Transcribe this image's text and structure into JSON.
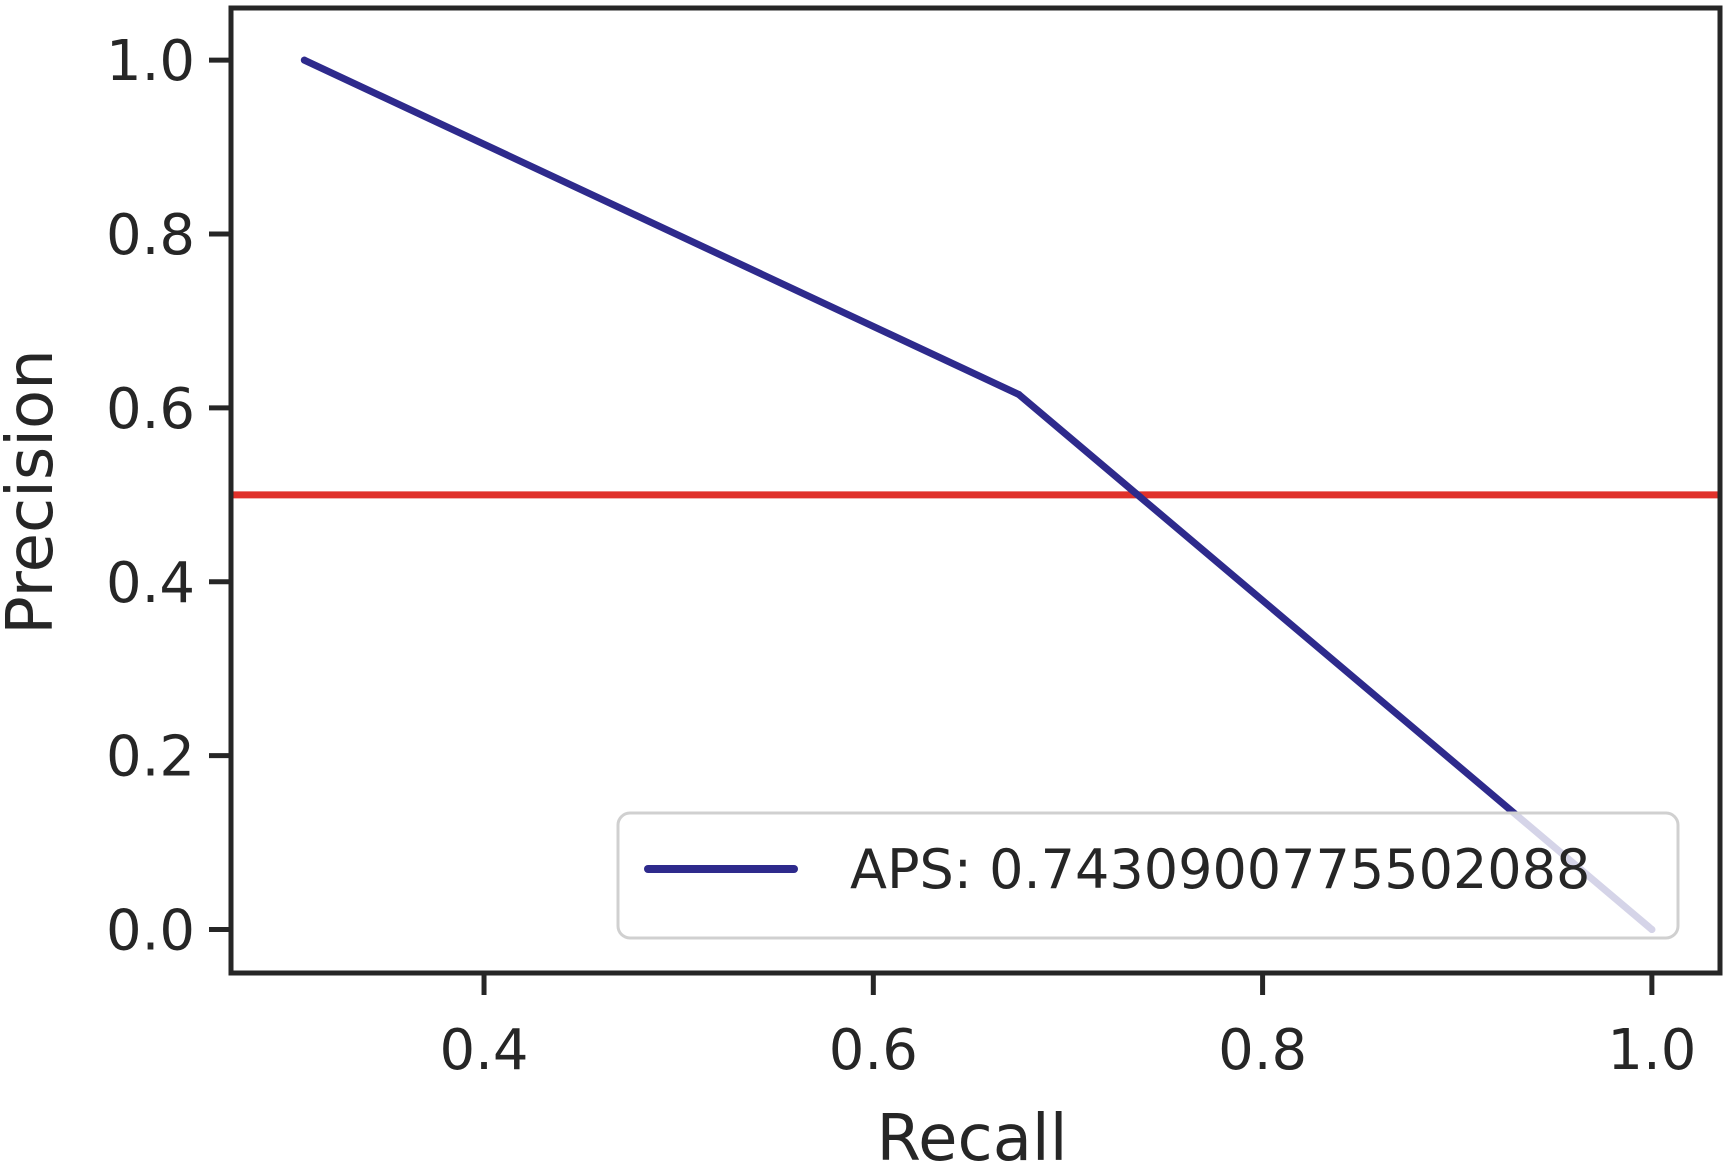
{
  "chart_data": {
    "type": "line",
    "title": "",
    "xlabel": "Recall",
    "ylabel": "Precision",
    "xlim": [
      0.27,
      1.035
    ],
    "ylim": [
      -0.05,
      1.06
    ],
    "xticks": [
      0.4,
      0.6,
      0.8,
      1.0
    ],
    "xtick_labels": [
      "0.4",
      "0.6",
      "0.8",
      "1.0"
    ],
    "yticks": [
      0.0,
      0.2,
      0.4,
      0.6,
      0.8,
      1.0
    ],
    "ytick_labels": [
      "0.0",
      "0.2",
      "0.4",
      "0.6",
      "0.8",
      "1.0"
    ],
    "grid": false,
    "legend_position": "lower-right",
    "series": [
      {
        "name": "APS: 0.7430900775502088",
        "color": "#2e2a8c",
        "x": [
          0.3077,
          0.6748,
          1.0
        ],
        "y": [
          1.0,
          0.6154,
          0.0
        ]
      }
    ],
    "reference_lines": [
      {
        "orientation": "horizontal",
        "y": 0.5,
        "color": "#e0312a"
      }
    ]
  }
}
